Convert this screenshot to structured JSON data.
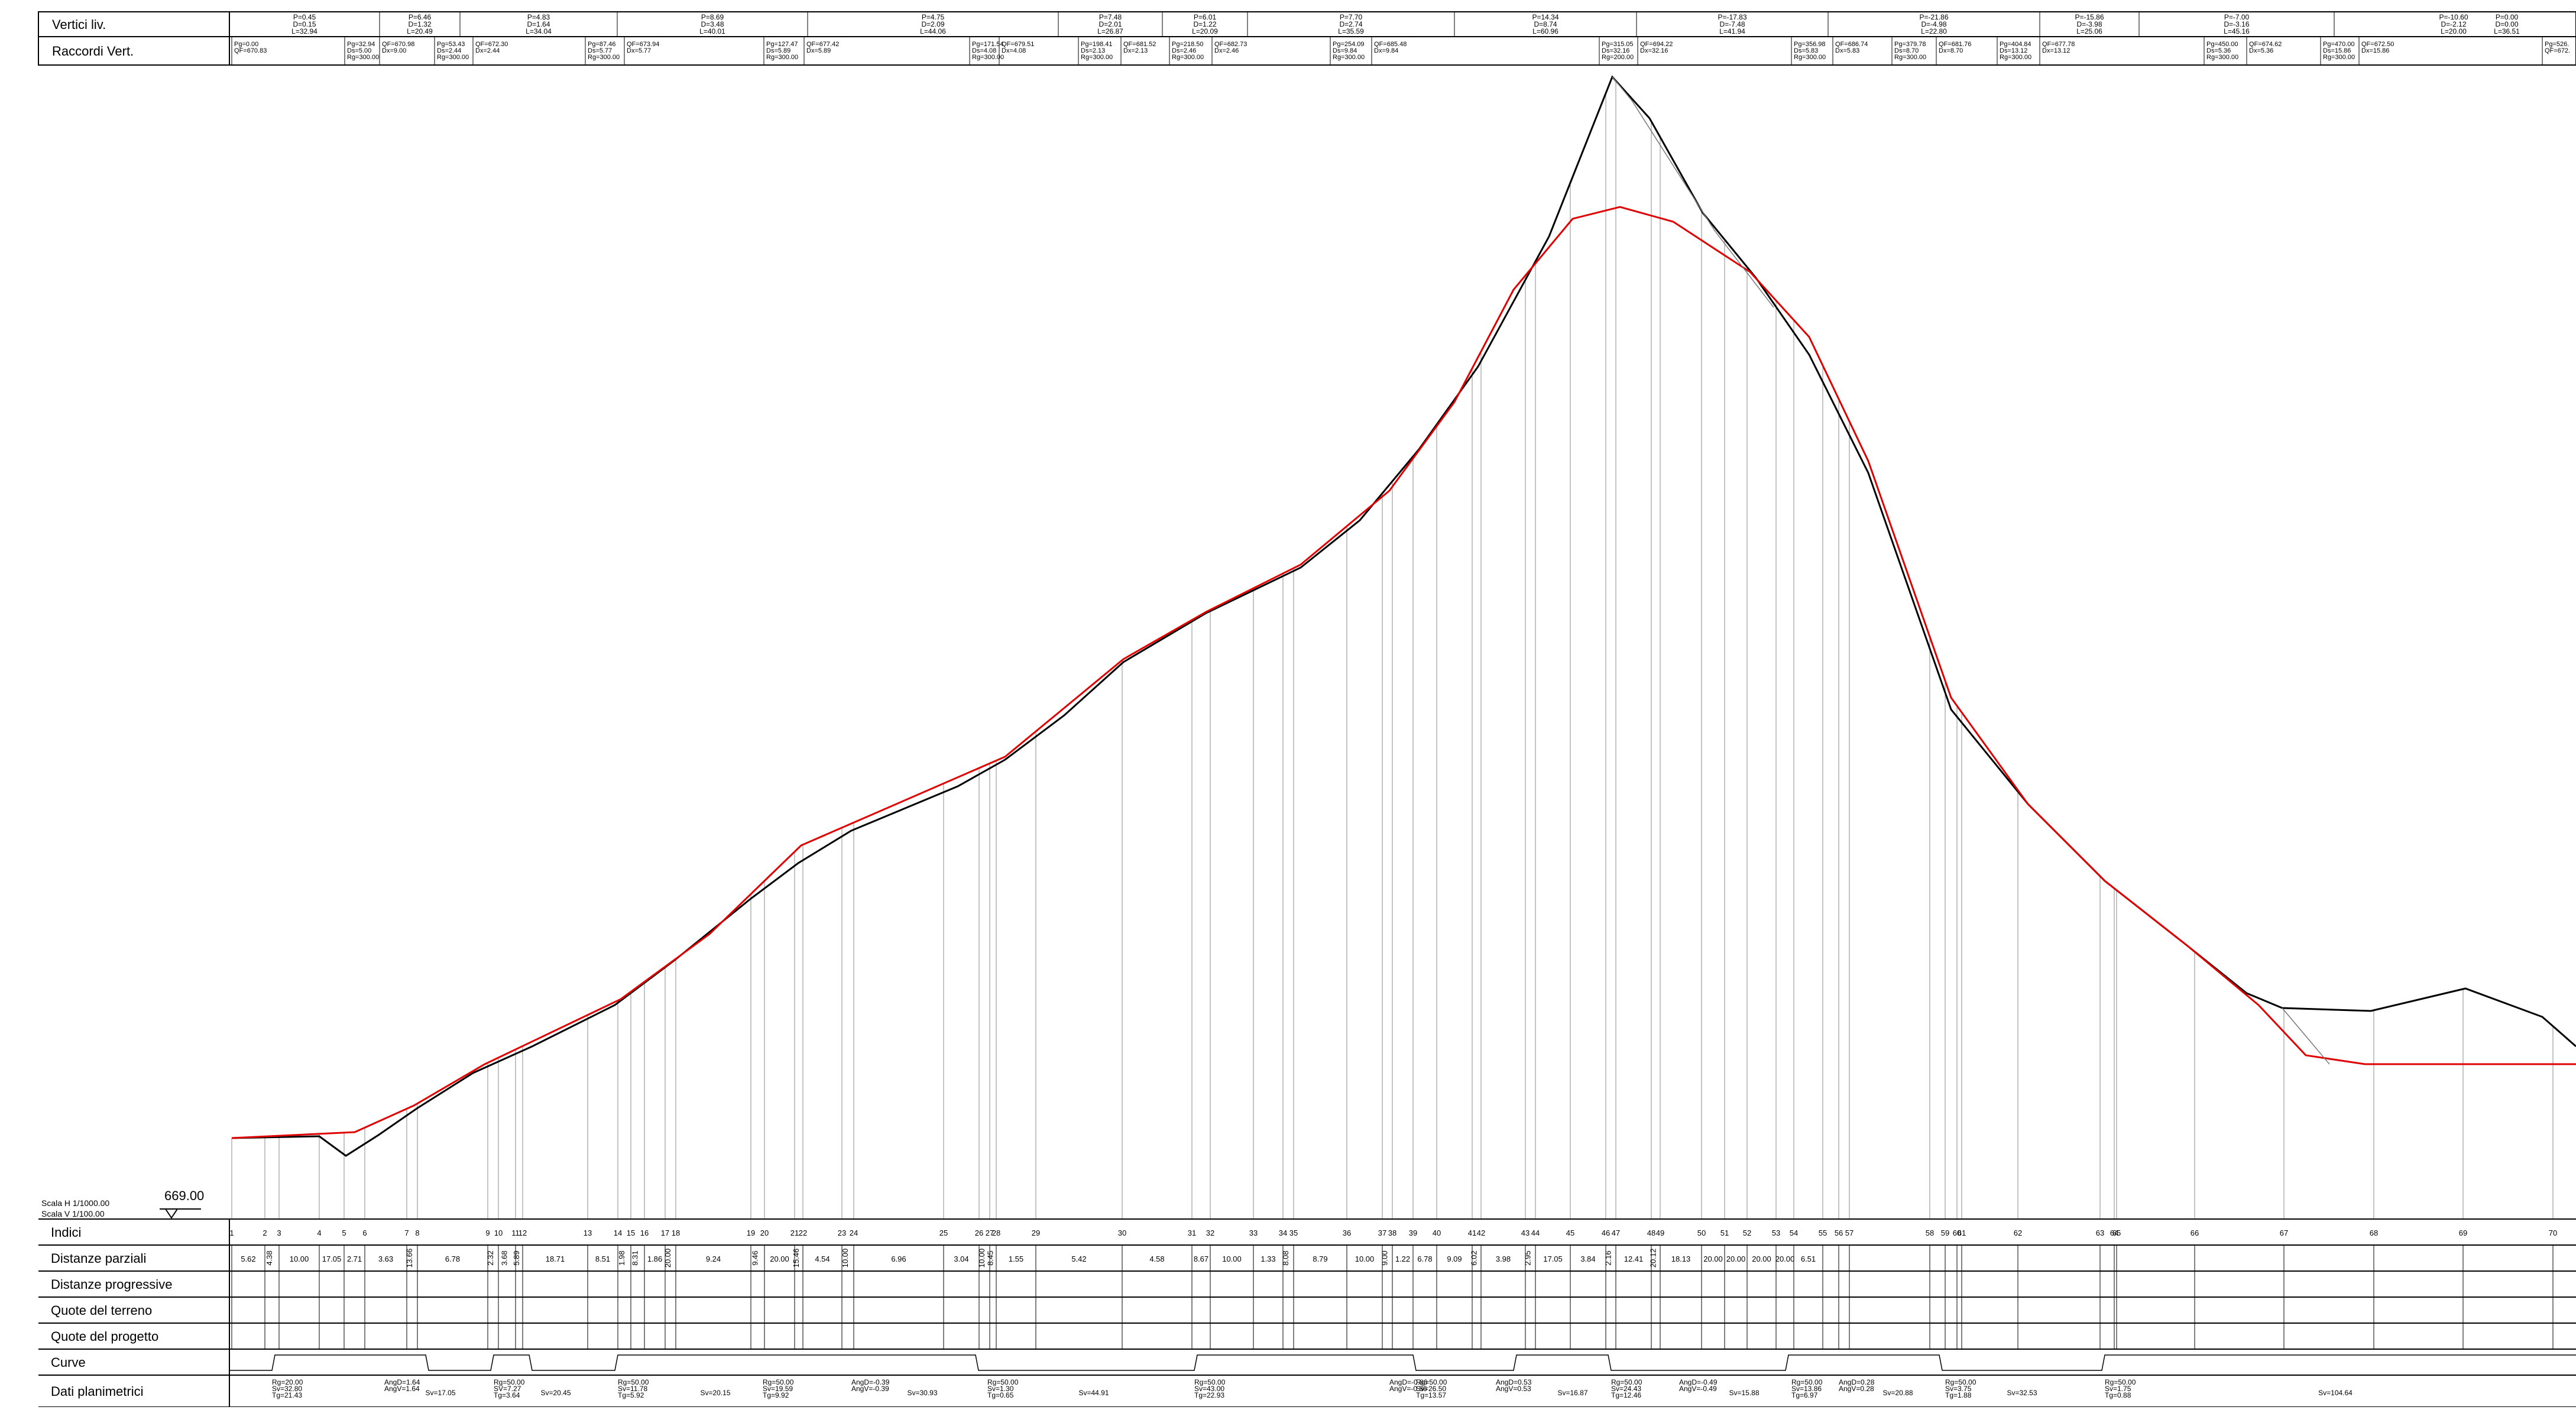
{
  "header_rows": [
    "Vertici liv.",
    "Raccordi Vert."
  ],
  "bottom_rows": [
    "Indici",
    "Distanze parziali",
    "Distanze progressive",
    "Quote del terreno",
    "Quote del progetto",
    "Curve",
    "Dati planimetrici"
  ],
  "scale_label_h": "Scala H  1/1000.00",
  "scale_label_v": "Scala V  1/100.00",
  "datum": "669.00",
  "vertici": [
    {
      "lines": [
        "P=0.45",
        "D=0.15",
        "L=32.94"
      ]
    },
    {
      "lines": [
        "P=6.46",
        "D=1.32",
        "L=20.49"
      ]
    },
    {
      "lines": [
        "P=4.83",
        "D=1.64",
        "L=34.04"
      ]
    },
    {
      "lines": [
        "P=8.69",
        "D=3.48",
        "L=40.01"
      ]
    },
    {
      "lines": [
        "P=4.75",
        "D=2.09",
        "L=44.06"
      ]
    },
    {
      "lines": [
        "P=7.48",
        "D=2.01",
        "L=26.87"
      ]
    },
    {
      "lines": [
        "P=6.01",
        "D=1.22",
        "L=20.09"
      ]
    },
    {
      "lines": [
        "P=7.70",
        "D=2.74",
        "L=35.59"
      ]
    },
    {
      "lines": [
        "P=14.34",
        "D=8.74",
        "L=60.96"
      ]
    },
    {
      "lines": [
        "P=-17.83",
        "D=-7.48",
        "L=41.94"
      ]
    },
    {
      "lines": [
        "P=-21.86",
        "D=-4.98",
        "L=22.80"
      ]
    },
    {
      "lines": [
        "P=-15.86",
        "D=-3.98",
        "L=25.06"
      ]
    },
    {
      "lines": [
        "P=-7.00",
        "D=-3.16",
        "L=45.16"
      ]
    },
    {
      "lines": [
        "P=-10.60",
        "D=-2.12",
        "L=20.00"
      ]
    },
    {
      "lines": [
        "P=0.00",
        "D=0.00",
        "L=36.51"
      ]
    }
  ],
  "raccordi": [
    {
      "lines": [
        "Pg=0.00",
        "QF=670.83"
      ]
    },
    {
      "lines": [
        "Pg=32.94",
        "Ds=5.00",
        "Rg=300.00"
      ]
    },
    {
      "lines": [
        "QF=670.98",
        "Dx=9.00"
      ]
    },
    {
      "lines": [
        "Pg=53.43",
        "Ds=2.44",
        "Rg=300.00"
      ]
    },
    {
      "lines": [
        "QF=672.30",
        "Dx=2.44"
      ]
    },
    {
      "lines": [
        "Pg=87.46",
        "Ds=5.77",
        "Rg=300.00"
      ]
    },
    {
      "lines": [
        "QF=673.94",
        "Dx=5.77"
      ]
    },
    {
      "lines": [
        "Pg=127.47",
        "Ds=5.89",
        "Rg=300.00"
      ]
    },
    {
      "lines": [
        "QF=677.42",
        "Dx=5.89"
      ]
    },
    {
      "lines": [
        "Pg=171.54",
        "Ds=4.08",
        "Rg=300.00"
      ]
    },
    {
      "lines": [
        "QF=679.51",
        "Dx=4.08"
      ]
    },
    {
      "lines": [
        "Pg=198.41",
        "Ds=2.13",
        "Rg=300.00"
      ]
    },
    {
      "lines": [
        "QF=681.52",
        "Dx=2.13"
      ]
    },
    {
      "lines": [
        "Pg=218.50",
        "Ds=2.46",
        "Rg=300.00"
      ]
    },
    {
      "lines": [
        "QF=682.73",
        "Dx=2.46"
      ]
    },
    {
      "lines": [
        "Pg=254.09",
        "Ds=9.84",
        "Rg=300.00"
      ]
    },
    {
      "lines": [
        "QF=685.48",
        "Dx=9.84"
      ]
    },
    {
      "lines": [
        "Pg=315.05",
        "Ds=32.16",
        "Rg=200.00"
      ]
    },
    {
      "lines": [
        "QF=694.22",
        "Dx=32.16"
      ]
    },
    {
      "lines": [
        "Pg=356.98",
        "Ds=5.83",
        "Rg=300.00"
      ]
    },
    {
      "lines": [
        "QF=686.74",
        "Dx=5.83"
      ]
    },
    {
      "lines": [
        "Pg=379.78",
        "Ds=8.70",
        "Rg=300.00"
      ]
    },
    {
      "lines": [
        "QF=681.76",
        "Dx=8.70"
      ]
    },
    {
      "lines": [
        "Pg=404.84",
        "Ds=13.12",
        "Rg=300.00"
      ]
    },
    {
      "lines": [
        "QF=677.78",
        "Dx=13.12"
      ]
    },
    {
      "lines": [
        "Pg=450.00",
        "Ds=5.36",
        "Rg=300.00"
      ]
    },
    {
      "lines": [
        "QF=674.62",
        "Dx=5.36"
      ]
    },
    {
      "lines": [
        "Pg=470.00",
        "Ds=15.86",
        "Rg=300.00"
      ]
    },
    {
      "lines": [
        "QF=672.50",
        "Dx=15.86"
      ]
    },
    {
      "lines": [
        "Pg=526.",
        "QF=672."
      ]
    }
  ],
  "indici": [
    "1",
    "2",
    "3",
    "4",
    "5",
    "6",
    "7",
    "8",
    "9",
    "10",
    "11",
    "12",
    "13",
    "14",
    "15",
    "16",
    "17",
    "18",
    "19",
    "20",
    "21",
    "22",
    "23",
    "24",
    "25",
    "26",
    "27",
    "28",
    "29",
    "30",
    "31",
    "32",
    "33",
    "34",
    "35",
    "36",
    "37",
    "38",
    "39",
    "40",
    "41",
    "42",
    "43",
    "44",
    "45",
    "46",
    "47",
    "48",
    "49",
    "50",
    "51",
    "52",
    "53",
    "54",
    "55",
    "56",
    "57",
    "58",
    "59",
    "60",
    "61",
    "62",
    "63",
    "64",
    "65",
    "66",
    "67",
    "68",
    "69",
    "70"
  ],
  "distanze_parziali": [
    "5.62",
    "4.38",
    "10.00",
    "17.05",
    "2.71",
    "3.63",
    "13.66",
    "6.78",
    "2.32",
    "3.68",
    "5.89",
    "18.71",
    "8.51",
    "1.98",
    "8.31",
    "1.86",
    "20.00",
    "9.24",
    "9.46",
    "20.00",
    "15.46",
    "4.54",
    "10.00",
    "6.96",
    "3.04",
    "10.00",
    "8.45",
    "1.55",
    "5.42",
    "4.58",
    "8.67",
    "10.00",
    "1.33",
    "8.08",
    "8.79",
    "10.00",
    "9.00",
    "1.22",
    "6.78",
    "9.09",
    "6.02",
    "3.98",
    "2.95",
    "17.05",
    "3.84",
    "2.16",
    "12.41",
    "20.12",
    "18.13",
    "20.00",
    "20.00",
    "20.00",
    "20.00",
    "6.51"
  ],
  "curve_labels": [],
  "dati_planimetrici": [
    {
      "lines": [
        "Rg=20.00",
        "Sv=32.80",
        "Tg=21.43"
      ]
    },
    {
      "lines": [
        "AngD=1.64",
        "AngV=1.64"
      ]
    },
    {
      "lines": [
        "Sv=17.05"
      ]
    },
    {
      "lines": [
        "Rg=50.00",
        "SV=7.27",
        "Tg=3.64"
      ]
    },
    {
      "lines": [
        "Sv=20.45"
      ]
    },
    {
      "lines": [
        "Rg=50.00",
        "Sv=11.78",
        "Tg=5.92"
      ]
    },
    {
      "lines": [
        "Sv=20.15"
      ]
    },
    {
      "lines": [
        "Rg=50.00",
        "Sv=19.59",
        "Tg=9.92"
      ]
    },
    {
      "lines": [
        "AngD=-0.39",
        "AngV=-0.39"
      ]
    },
    {
      "lines": [
        "Sv=30.93"
      ]
    },
    {
      "lines": [
        "Rg=50.00",
        "Sv=1.30",
        "Tg=0.65"
      ]
    },
    {
      "lines": [
        "Sv=44.91"
      ]
    },
    {
      "lines": [
        "Rg=50.00",
        "Sv=43.00",
        "Tg=22.93"
      ]
    },
    {
      "lines": [
        "AngD=-0.86",
        "AngV=-0.86"
      ]
    },
    {
      "lines": [
        "Rg=50.00",
        "Sv=26.50",
        "Tg=13.57"
      ]
    },
    {
      "lines": [
        "AngD=0.53",
        "AngV=0.53"
      ]
    },
    {
      "lines": [
        "Sv=16.87"
      ]
    },
    {
      "lines": [
        "Rg=50.00",
        "Sv=24.43",
        "Tg=12.46"
      ]
    },
    {
      "lines": [
        "AngD=-0.49",
        "AngV=-0.49"
      ]
    },
    {
      "lines": [
        "Sv=15.88"
      ]
    },
    {
      "lines": [
        "Rg=50.00",
        "Sv=13.86",
        "Tg=6.97"
      ]
    },
    {
      "lines": [
        "AngD=0.28",
        "AngV=0.28"
      ]
    },
    {
      "lines": [
        "Sv=20.88"
      ]
    },
    {
      "lines": [
        "Rg=50.00",
        "Sv=3.75",
        "Tg=1.88"
      ]
    },
    {
      "lines": [
        "Sv=32.53"
      ]
    },
    {
      "lines": [
        "Rg=50.00",
        "Sv=1.75",
        "Tg=0.88"
      ]
    },
    {
      "lines": [
        "Sv=104.64"
      ]
    }
  ],
  "colors": {
    "terrain": "#000000",
    "design": "#e00000",
    "grid": "#888888"
  }
}
